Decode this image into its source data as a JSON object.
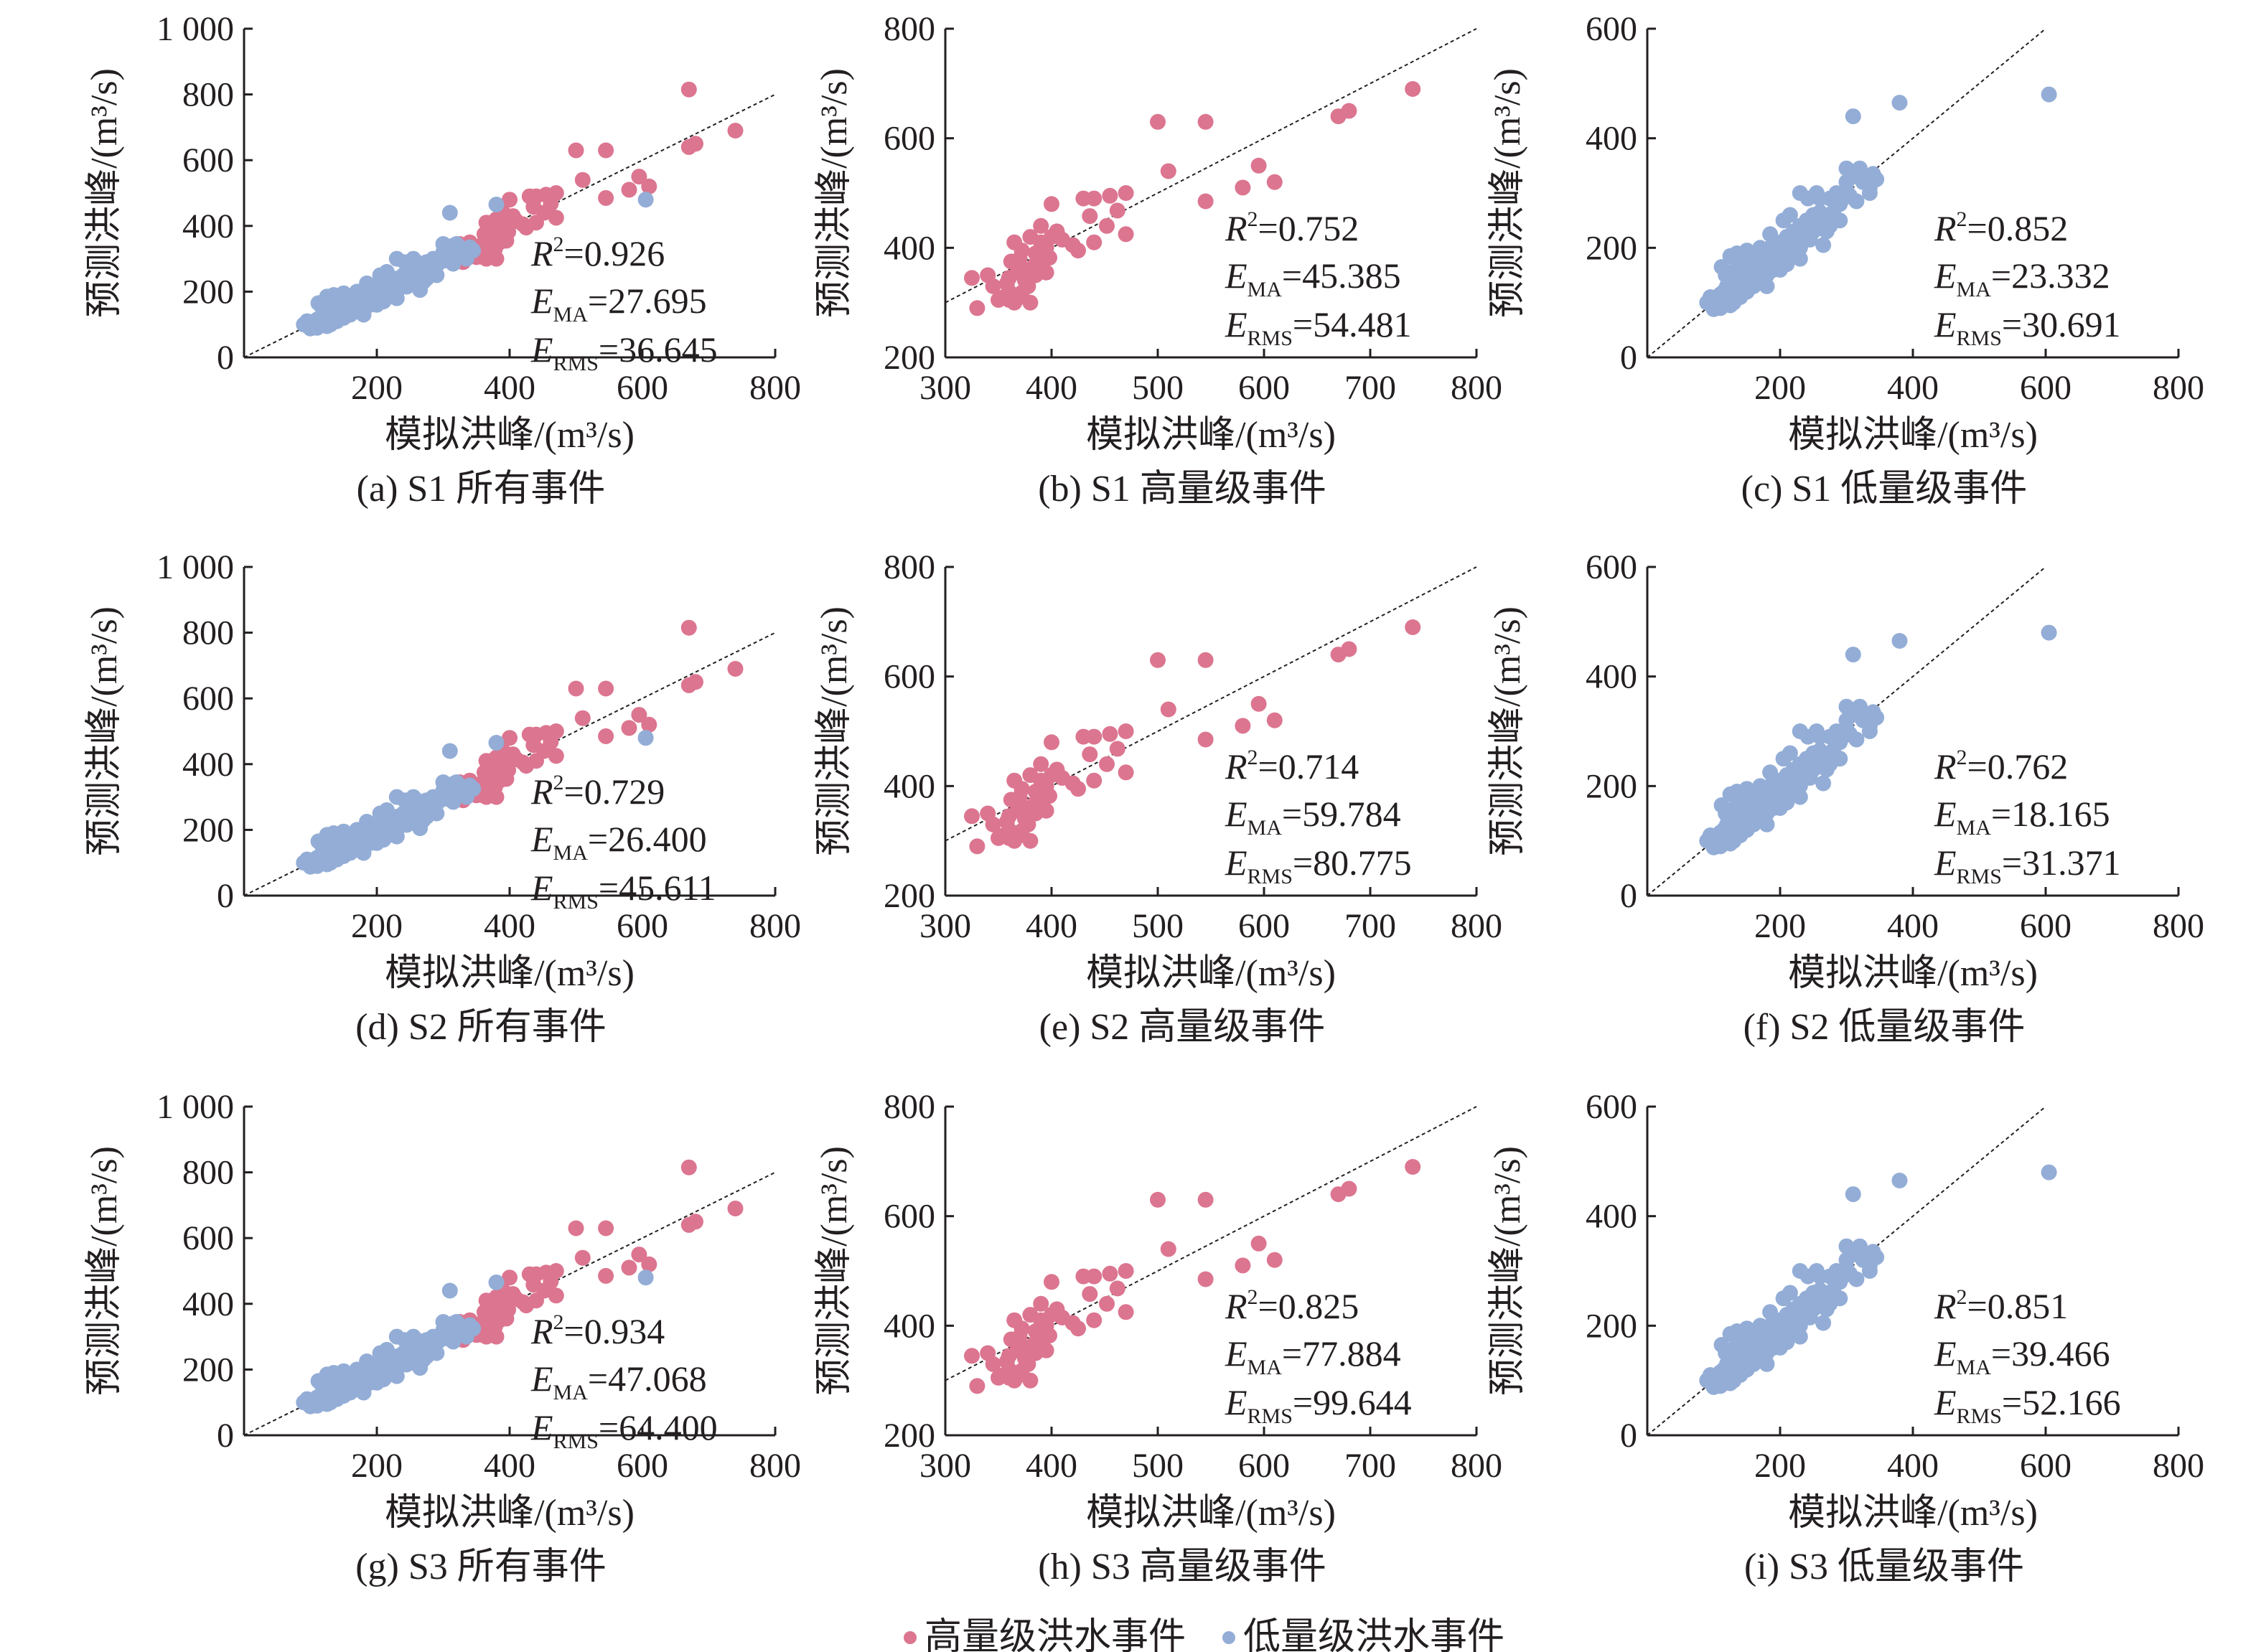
{
  "figure": {
    "legend": {
      "high_label": "高量级洪水事件",
      "low_label": "低量级洪水事件"
    },
    "colors": {
      "high": "#dc7590",
      "low": "#93add6",
      "axis": "#231f20",
      "ref_line": "#231f20"
    },
    "x_axis_label": "模拟洪峰/(m³/s)",
    "y_axis_label": "预测洪峰/(m³/s)"
  },
  "chart_data": [
    {
      "id": "a",
      "type": "scatter",
      "title": "(a) S1 所有事件",
      "xlim": [
        0,
        800
      ],
      "ylim": [
        0,
        1000
      ],
      "xticks": [
        200,
        400,
        600,
        800
      ],
      "yticks": [
        0,
        200,
        400,
        600,
        800,
        1000
      ],
      "ytick_labels": [
        "0",
        "200",
        "400",
        "600",
        "800",
        "1 000"
      ],
      "stats": {
        "r2": "0.926",
        "ema": "27.695",
        "erms": "36.645"
      },
      "series": [
        "high",
        "low"
      ]
    },
    {
      "id": "b",
      "type": "scatter",
      "title": "(b) S1 高量级事件",
      "xlim": [
        300,
        800
      ],
      "ylim": [
        200,
        800
      ],
      "xticks": [
        300,
        400,
        500,
        600,
        700,
        800
      ],
      "yticks": [
        200,
        400,
        600,
        800
      ],
      "ytick_labels": [
        "200",
        "400",
        "600",
        "800"
      ],
      "stats": {
        "r2": "0.752",
        "ema": "45.385",
        "erms": "54.481"
      },
      "series": [
        "high"
      ]
    },
    {
      "id": "c",
      "type": "scatter",
      "title": "(c) S1 低量级事件",
      "xlim": [
        0,
        800
      ],
      "ylim": [
        0,
        600
      ],
      "xticks": [
        200,
        400,
        600,
        800
      ],
      "yticks": [
        0,
        200,
        400,
        600
      ],
      "ytick_labels": [
        "0",
        "200",
        "400",
        "600"
      ],
      "stats": {
        "r2": "0.852",
        "ema": "23.332",
        "erms": "30.691"
      },
      "series": [
        "low"
      ]
    },
    {
      "id": "d",
      "type": "scatter",
      "title": "(d) S2 所有事件",
      "xlim": [
        0,
        800
      ],
      "ylim": [
        0,
        1000
      ],
      "xticks": [
        200,
        400,
        600,
        800
      ],
      "yticks": [
        0,
        200,
        400,
        600,
        800,
        1000
      ],
      "ytick_labels": [
        "0",
        "200",
        "400",
        "600",
        "800",
        "1 000"
      ],
      "stats": {
        "r2": "0.729",
        "ema": "26.400",
        "erms": "45.611"
      },
      "series": [
        "high",
        "low"
      ]
    },
    {
      "id": "e",
      "type": "scatter",
      "title": "(e) S2 高量级事件",
      "xlim": [
        300,
        800
      ],
      "ylim": [
        200,
        800
      ],
      "xticks": [
        300,
        400,
        500,
        600,
        700,
        800
      ],
      "yticks": [
        200,
        400,
        600,
        800
      ],
      "ytick_labels": [
        "200",
        "400",
        "600",
        "800"
      ],
      "stats": {
        "r2": "0.714",
        "ema": "59.784",
        "erms": "80.775"
      },
      "series": [
        "high"
      ]
    },
    {
      "id": "f",
      "type": "scatter",
      "title": "(f) S2 低量级事件",
      "xlim": [
        0,
        800
      ],
      "ylim": [
        0,
        600
      ],
      "xticks": [
        200,
        400,
        600,
        800
      ],
      "yticks": [
        0,
        200,
        400,
        600
      ],
      "ytick_labels": [
        "0",
        "200",
        "400",
        "600"
      ],
      "stats": {
        "r2": "0.762",
        "ema": "18.165",
        "erms": "31.371"
      },
      "series": [
        "low"
      ]
    },
    {
      "id": "g",
      "type": "scatter",
      "title": "(g) S3 所有事件",
      "xlim": [
        0,
        800
      ],
      "ylim": [
        0,
        1000
      ],
      "xticks": [
        200,
        400,
        600,
        800
      ],
      "yticks": [
        0,
        200,
        400,
        600,
        800,
        1000
      ],
      "ytick_labels": [
        "0",
        "200",
        "400",
        "600",
        "800",
        "1 000"
      ],
      "stats": {
        "r2": "0.934",
        "ema": "47.068",
        "erms": "64.400"
      },
      "series": [
        "high",
        "low"
      ]
    },
    {
      "id": "h",
      "type": "scatter",
      "title": "(h) S3 高量级事件",
      "xlim": [
        300,
        800
      ],
      "ylim": [
        200,
        800
      ],
      "xticks": [
        300,
        400,
        500,
        600,
        700,
        800
      ],
      "yticks": [
        200,
        400,
        600,
        800
      ],
      "ytick_labels": [
        "200",
        "400",
        "600",
        "800"
      ],
      "stats": {
        "r2": "0.825",
        "ema": "77.884",
        "erms": "99.644"
      },
      "series": [
        "high"
      ]
    },
    {
      "id": "i",
      "type": "scatter",
      "title": "(i) S3 低量级事件",
      "xlim": [
        0,
        800
      ],
      "ylim": [
        0,
        600
      ],
      "xticks": [
        200,
        400,
        600,
        800
      ],
      "yticks": [
        0,
        200,
        400,
        600
      ],
      "ytick_labels": [
        "0",
        "200",
        "400",
        "600"
      ],
      "stats": {
        "r2": "0.851",
        "ema": "39.466",
        "erms": "52.166"
      },
      "series": [
        "low"
      ]
    }
  ],
  "points": {
    "high": [
      [
        670,
        815
      ],
      [
        740,
        690
      ],
      [
        680,
        650
      ],
      [
        670,
        640
      ],
      [
        500,
        630
      ],
      [
        545,
        630
      ],
      [
        595,
        550
      ],
      [
        580,
        510
      ],
      [
        510,
        540
      ],
      [
        545,
        485
      ],
      [
        470,
        500
      ],
      [
        440,
        490
      ],
      [
        455,
        495
      ],
      [
        430,
        490
      ],
      [
        400,
        480
      ],
      [
        390,
        440
      ],
      [
        470,
        425
      ],
      [
        440,
        410
      ],
      [
        425,
        395
      ],
      [
        380,
        420
      ],
      [
        390,
        410
      ],
      [
        400,
        420
      ],
      [
        385,
        390
      ],
      [
        375,
        360
      ],
      [
        370,
        380
      ],
      [
        365,
        410
      ],
      [
        360,
        345
      ],
      [
        375,
        340
      ],
      [
        360,
        320
      ],
      [
        355,
        310
      ],
      [
        370,
        310
      ],
      [
        365,
        300
      ],
      [
        380,
        300
      ],
      [
        350,
        305
      ],
      [
        340,
        350
      ],
      [
        330,
        290
      ],
      [
        325,
        345
      ],
      [
        345,
        330
      ],
      [
        385,
        350
      ],
      [
        395,
        400
      ],
      [
        372,
        395
      ],
      [
        368,
        355
      ],
      [
        362,
        375
      ],
      [
        388,
        375
      ],
      [
        378,
        330
      ],
      [
        358,
        335
      ],
      [
        395,
        355
      ],
      [
        405,
        430
      ],
      [
        420,
        405
      ],
      [
        452,
        440
      ],
      [
        610,
        520
      ],
      [
        360,
        305
      ],
      [
        372,
        318
      ],
      [
        384,
        368
      ],
      [
        398,
        382
      ],
      [
        410,
        415
      ],
      [
        436,
        458
      ],
      [
        462,
        468
      ]
    ],
    "low": [
      [
        90,
        100
      ],
      [
        95,
        110
      ],
      [
        100,
        95
      ],
      [
        105,
        105
      ],
      [
        110,
        115
      ],
      [
        115,
        120
      ],
      [
        120,
        105
      ],
      [
        120,
        130
      ],
      [
        125,
        140
      ],
      [
        130,
        150
      ],
      [
        130,
        125
      ],
      [
        135,
        165
      ],
      [
        140,
        145
      ],
      [
        140,
        130
      ],
      [
        145,
        175
      ],
      [
        150,
        150
      ],
      [
        150,
        180
      ],
      [
        155,
        160
      ],
      [
        160,
        170
      ],
      [
        160,
        145
      ],
      [
        165,
        185
      ],
      [
        170,
        175
      ],
      [
        170,
        160
      ],
      [
        175,
        195
      ],
      [
        180,
        170
      ],
      [
        180,
        150
      ],
      [
        185,
        200
      ],
      [
        190,
        185
      ],
      [
        195,
        175
      ],
      [
        200,
        210
      ],
      [
        200,
        190
      ],
      [
        205,
        175
      ],
      [
        210,
        220
      ],
      [
        215,
        200
      ],
      [
        220,
        230
      ],
      [
        220,
        185
      ],
      [
        225,
        215
      ],
      [
        230,
        240
      ],
      [
        230,
        200
      ],
      [
        235,
        225
      ],
      [
        240,
        250
      ],
      [
        245,
        215
      ],
      [
        250,
        260
      ],
      [
        250,
        230
      ],
      [
        255,
        240
      ],
      [
        260,
        265
      ],
      [
        265,
        250
      ],
      [
        270,
        255
      ],
      [
        275,
        240
      ],
      [
        280,
        265
      ],
      [
        285,
        300
      ],
      [
        290,
        280
      ],
      [
        295,
        290
      ],
      [
        300,
        320
      ],
      [
        300,
        305
      ],
      [
        305,
        295
      ],
      [
        310,
        330
      ],
      [
        315,
        340
      ],
      [
        320,
        345
      ],
      [
        325,
        320
      ],
      [
        330,
        330
      ],
      [
        335,
        310
      ],
      [
        340,
        335
      ],
      [
        345,
        325
      ],
      [
        310,
        440
      ],
      [
        380,
        465
      ],
      [
        605,
        480
      ],
      [
        255,
        300
      ],
      [
        242,
        290
      ],
      [
        230,
        300
      ],
      [
        125,
        185
      ],
      [
        135,
        190
      ],
      [
        150,
        195
      ],
      [
        112,
        165
      ],
      [
        118,
        150
      ],
      [
        170,
        200
      ],
      [
        185,
        225
      ],
      [
        205,
        250
      ],
      [
        215,
        260
      ],
      [
        260,
        290
      ],
      [
        275,
        290
      ],
      [
        300,
        345
      ],
      [
        265,
        205
      ],
      [
        150,
        120
      ],
      [
        160,
        130
      ],
      [
        140,
        110
      ],
      [
        130,
        100
      ],
      [
        170,
        140
      ],
      [
        190,
        160
      ],
      [
        210,
        170
      ],
      [
        230,
        180
      ],
      [
        270,
        230
      ],
      [
        290,
        250
      ],
      [
        315,
        285
      ],
      [
        335,
        300
      ],
      [
        110,
        90
      ],
      [
        100,
        88
      ],
      [
        125,
        95
      ],
      [
        180,
        130
      ],
      [
        200,
        160
      ]
    ]
  }
}
